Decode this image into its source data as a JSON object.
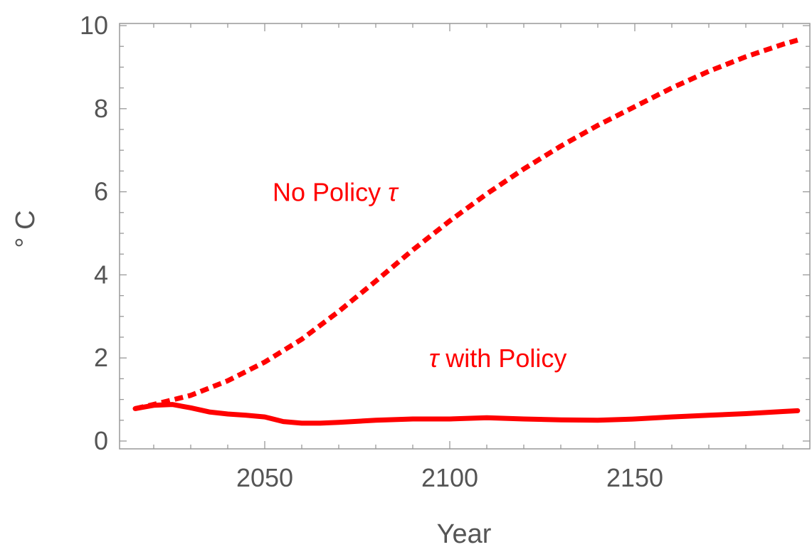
{
  "chart_data": {
    "type": "line",
    "xlabel": "Year",
    "ylabel": "° C",
    "xlim": [
      2012,
      2195
    ],
    "ylim": [
      0,
      10
    ],
    "x_ticks": [
      2050,
      2100,
      2150
    ],
    "x_tick_labels": [
      "2050",
      "2100",
      "2150"
    ],
    "y_ticks": [
      0,
      2,
      4,
      6,
      8,
      10
    ],
    "y_tick_labels": [
      "0",
      "2",
      "4",
      "6",
      "8",
      "10"
    ],
    "grid": false,
    "series": [
      {
        "name": "No Policy τ",
        "color": "#ff0000",
        "style": "dashed",
        "x": [
          2015,
          2020,
          2030,
          2040,
          2050,
          2060,
          2070,
          2080,
          2090,
          2100,
          2110,
          2120,
          2130,
          2140,
          2150,
          2160,
          2170,
          2180,
          2190,
          2194
        ],
        "y": [
          0.78,
          0.88,
          1.1,
          1.45,
          1.9,
          2.45,
          3.12,
          3.85,
          4.6,
          5.3,
          5.95,
          6.55,
          7.1,
          7.6,
          8.05,
          8.5,
          8.9,
          9.25,
          9.55,
          9.65
        ]
      },
      {
        "name": "τ with Policy",
        "color": "#ff0000",
        "style": "solid",
        "x": [
          2015,
          2020,
          2025,
          2030,
          2035,
          2040,
          2045,
          2050,
          2055,
          2060,
          2065,
          2070,
          2080,
          2090,
          2100,
          2110,
          2120,
          2130,
          2140,
          2150,
          2160,
          2170,
          2180,
          2190,
          2194
        ],
        "y": [
          0.78,
          0.86,
          0.88,
          0.8,
          0.7,
          0.65,
          0.62,
          0.58,
          0.47,
          0.43,
          0.43,
          0.45,
          0.5,
          0.53,
          0.53,
          0.56,
          0.53,
          0.51,
          0.5,
          0.53,
          0.58,
          0.62,
          0.66,
          0.71,
          0.73
        ]
      }
    ],
    "annotations": [
      {
        "text": "No Policy",
        "symbol": "τ",
        "symbol_position": "after",
        "x": 2069,
        "y": 6.0
      },
      {
        "text": "with Policy",
        "symbol": "τ",
        "symbol_position": "before",
        "x": 2113,
        "y": 2.0
      }
    ]
  }
}
